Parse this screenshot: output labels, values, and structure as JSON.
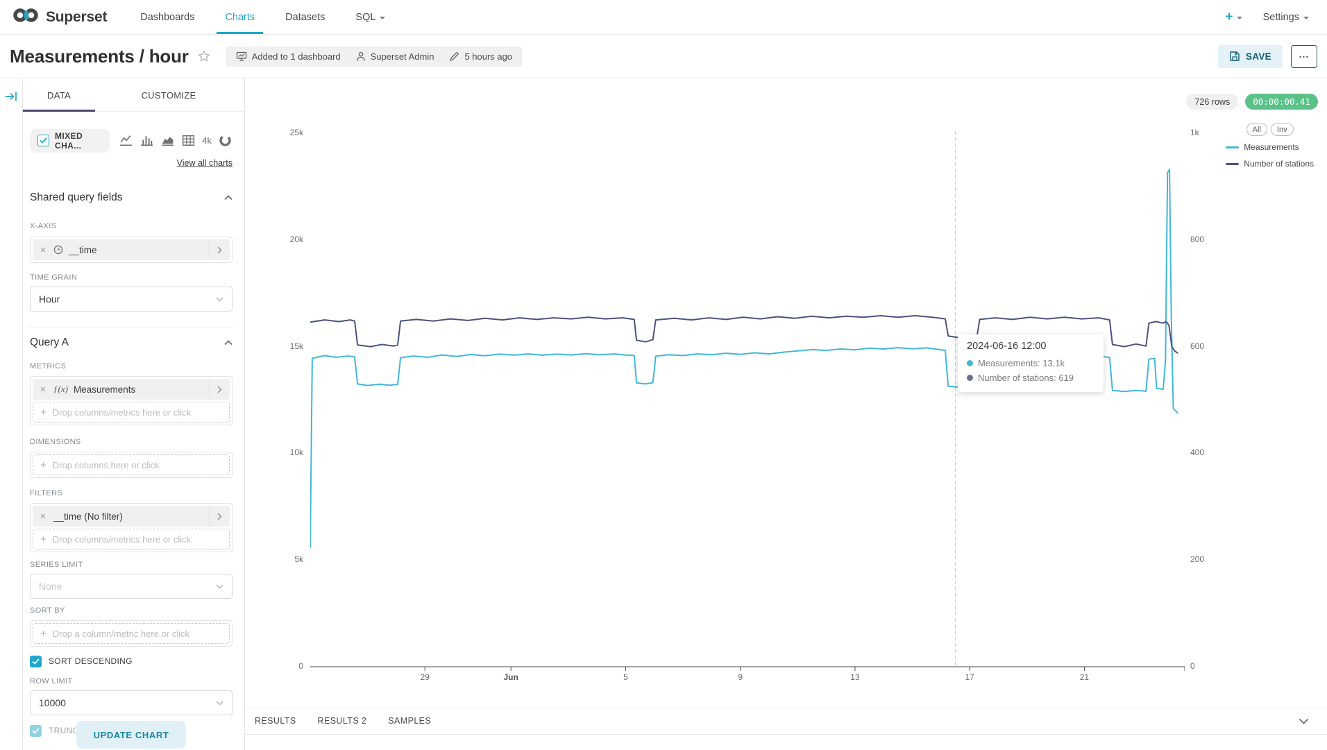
{
  "navbar": {
    "brand": "Superset",
    "items": [
      {
        "label": "Dashboards",
        "active": false
      },
      {
        "label": "Charts",
        "active": true
      },
      {
        "label": "Datasets",
        "active": false
      },
      {
        "label": "SQL",
        "active": false
      }
    ],
    "plus_label": "+",
    "settings_label": "Settings"
  },
  "header": {
    "title": "Measurements / hour",
    "meta": {
      "dashboards": "Added to 1 dashboard",
      "owner": "Superset Admin",
      "modified": "5 hours ago"
    },
    "save_label": "SAVE",
    "more_label": "..."
  },
  "panel": {
    "tabs": {
      "data": "DATA",
      "customize": "CUSTOMIZE"
    },
    "viz": {
      "selected": "MIXED CHA...",
      "icons": [
        "line-chart-icon",
        "bar-chart-icon",
        "area-chart-icon",
        "table-icon",
        "text:4k",
        "donut-chart-icon"
      ],
      "view_all": "View all charts"
    },
    "shared_section": "Shared query fields",
    "x_axis": {
      "label": "X-AXIS",
      "value": "__time"
    },
    "time_grain": {
      "label": "TIME GRAIN",
      "value": "Hour"
    },
    "query_section": "Query A",
    "metrics": {
      "label": "METRICS",
      "chip_prefix": "ƒ(x)",
      "chip": "Measurements",
      "drop": "Drop columns/metrics here or click"
    },
    "dimensions": {
      "label": "DIMENSIONS",
      "drop": "Drop columns here or click"
    },
    "filters": {
      "label": "FILTERS",
      "chip": "__time (No filter)",
      "drop": "Drop columns/metrics here or click"
    },
    "series_limit": {
      "label": "SERIES LIMIT",
      "placeholder": "None"
    },
    "sort_by": {
      "label": "SORT BY",
      "drop": "Drop a column/metric here or click"
    },
    "sort_descending": {
      "label": "SORT DESCENDING",
      "checked": true
    },
    "row_limit": {
      "label": "ROW LIMIT",
      "value": "10000"
    },
    "truncate_metric": {
      "label": "TRUNCATE METRIC",
      "checked": true
    },
    "update_button": "UPDATE CHART"
  },
  "chart": {
    "rows_badge": "726 rows",
    "timer_badge": "00:00:00.41",
    "tooltip": {
      "title": "2024-06-16 12:00",
      "rows": [
        {
          "label": "Measurements",
          "value": "13.1k",
          "color": "#48b6d3"
        },
        {
          "label": "Number of stations",
          "value": "619",
          "color": "#6a7198"
        }
      ]
    }
  },
  "results_tabs": [
    "RESULTS",
    "RESULTS 2",
    "SAMPLES"
  ],
  "colors": {
    "primary": "#20a7c9",
    "success": "#5ac189",
    "ink_bar": "#434a6b",
    "measurements_line": "#41b7d9",
    "stations_line": "#4a527f"
  },
  "chart_data": {
    "type": "line",
    "title": "Measurements / hour",
    "grid": false,
    "legend": {
      "position": "top-right",
      "buttons": [
        "All",
        "Inv"
      ]
    },
    "x_axis": {
      "unit": "days since 2024-05-25 00:00 (hourly data)",
      "domain": [
        0,
        30.5
      ],
      "ticks": [
        {
          "label": "29",
          "day": 4
        },
        {
          "label": "Jun",
          "day": 7,
          "bold": true
        },
        {
          "label": "5",
          "day": 11
        },
        {
          "label": "9",
          "day": 15
        },
        {
          "label": "13",
          "day": 19
        },
        {
          "label": "17",
          "day": 23
        },
        {
          "label": "21",
          "day": 27
        }
      ]
    },
    "y_left": {
      "max": 25000,
      "tick_values": [
        0,
        5000,
        10000,
        15000,
        20000,
        25000
      ],
      "tick_labels": [
        "0",
        "5k",
        "10k",
        "15k",
        "20k",
        "25k"
      ]
    },
    "y_right": {
      "max": 1000,
      "tick_values": [
        0,
        200,
        400,
        600,
        800,
        1000
      ],
      "tick_labels": [
        "0",
        "200",
        "400",
        "600",
        "800",
        "1k"
      ]
    },
    "crosshair_day": 22.5,
    "series": [
      {
        "name": "Measurements",
        "axis": "left",
        "color": "#41b7d9",
        "points": [
          [
            0,
            5600
          ],
          [
            0.07,
            14450
          ],
          [
            0.5,
            14580
          ],
          [
            0.9,
            14500
          ],
          [
            1.3,
            14560
          ],
          [
            1.55,
            14520
          ],
          [
            1.65,
            13250
          ],
          [
            2.0,
            13180
          ],
          [
            2.4,
            13240
          ],
          [
            2.75,
            13190
          ],
          [
            3.05,
            13230
          ],
          [
            3.15,
            14480
          ],
          [
            3.6,
            14560
          ],
          [
            4.1,
            14500
          ],
          [
            4.6,
            14610
          ],
          [
            5.1,
            14540
          ],
          [
            5.6,
            14630
          ],
          [
            6.1,
            14570
          ],
          [
            6.6,
            14650
          ],
          [
            7.1,
            14600
          ],
          [
            7.6,
            14660
          ],
          [
            8.1,
            14600
          ],
          [
            8.6,
            14650
          ],
          [
            9.1,
            14610
          ],
          [
            9.6,
            14670
          ],
          [
            10.1,
            14620
          ],
          [
            10.6,
            14660
          ],
          [
            11.0,
            14610
          ],
          [
            11.3,
            14590
          ],
          [
            11.38,
            13300
          ],
          [
            11.7,
            13250
          ],
          [
            11.95,
            13310
          ],
          [
            12.05,
            14550
          ],
          [
            12.5,
            14620
          ],
          [
            13.0,
            14580
          ],
          [
            13.5,
            14660
          ],
          [
            14.0,
            14620
          ],
          [
            14.5,
            14690
          ],
          [
            15.0,
            14640
          ],
          [
            15.5,
            14710
          ],
          [
            16.0,
            14660
          ],
          [
            16.5,
            14740
          ],
          [
            17.0,
            14800
          ],
          [
            17.5,
            14860
          ],
          [
            18.0,
            14820
          ],
          [
            18.5,
            14890
          ],
          [
            19.0,
            14850
          ],
          [
            19.5,
            14930
          ],
          [
            20.0,
            14890
          ],
          [
            20.5,
            14950
          ],
          [
            21.0,
            14900
          ],
          [
            21.5,
            14940
          ],
          [
            21.9,
            14870
          ],
          [
            22.15,
            14820
          ],
          [
            22.25,
            13150
          ],
          [
            22.6,
            13100
          ],
          [
            23.0,
            13140
          ],
          [
            23.25,
            13110
          ],
          [
            23.35,
            14470
          ],
          [
            23.8,
            14530
          ],
          [
            24.3,
            14480
          ],
          [
            24.8,
            14540
          ],
          [
            25.3,
            14490
          ],
          [
            25.8,
            14550
          ],
          [
            26.3,
            14500
          ],
          [
            26.8,
            14540
          ],
          [
            27.3,
            14500
          ],
          [
            27.7,
            14530
          ],
          [
            27.88,
            14490
          ],
          [
            27.98,
            12950
          ],
          [
            28.4,
            12900
          ],
          [
            28.8,
            12950
          ],
          [
            29.15,
            12910
          ],
          [
            29.25,
            14410
          ],
          [
            29.45,
            14450
          ],
          [
            29.52,
            13050
          ],
          [
            29.75,
            13000
          ],
          [
            29.83,
            14380
          ],
          [
            29.9,
            23150
          ],
          [
            29.97,
            23300
          ],
          [
            30.03,
            16500
          ],
          [
            30.1,
            12100
          ],
          [
            30.25,
            11900
          ]
        ]
      },
      {
        "name": "Number of stations",
        "axis": "right",
        "color": "#4a527f",
        "points": [
          [
            0,
            646
          ],
          [
            0.5,
            650
          ],
          [
            1.0,
            647
          ],
          [
            1.4,
            650
          ],
          [
            1.55,
            648
          ],
          [
            1.65,
            603
          ],
          [
            2.1,
            600
          ],
          [
            2.5,
            604
          ],
          [
            2.9,
            601
          ],
          [
            3.05,
            603
          ],
          [
            3.15,
            648
          ],
          [
            3.7,
            651
          ],
          [
            4.3,
            648
          ],
          [
            4.9,
            652
          ],
          [
            5.5,
            649
          ],
          [
            6.1,
            653
          ],
          [
            6.7,
            650
          ],
          [
            7.3,
            654
          ],
          [
            7.9,
            651
          ],
          [
            8.5,
            654
          ],
          [
            9.1,
            652
          ],
          [
            9.7,
            655
          ],
          [
            10.3,
            652
          ],
          [
            10.9,
            654
          ],
          [
            11.3,
            651
          ],
          [
            11.38,
            612
          ],
          [
            11.7,
            609
          ],
          [
            11.95,
            613
          ],
          [
            12.05,
            650
          ],
          [
            12.7,
            653
          ],
          [
            13.3,
            650
          ],
          [
            13.9,
            654
          ],
          [
            14.5,
            651
          ],
          [
            15.1,
            655
          ],
          [
            15.7,
            652
          ],
          [
            16.3,
            656
          ],
          [
            16.9,
            653
          ],
          [
            17.5,
            657
          ],
          [
            18.1,
            654
          ],
          [
            18.7,
            657
          ],
          [
            19.3,
            655
          ],
          [
            19.9,
            658
          ],
          [
            20.5,
            655
          ],
          [
            21.1,
            658
          ],
          [
            21.7,
            655
          ],
          [
            22.15,
            652
          ],
          [
            22.25,
            620
          ],
          [
            22.6,
            617
          ],
          [
            23.0,
            621
          ],
          [
            23.25,
            618
          ],
          [
            23.35,
            651
          ],
          [
            23.9,
            654
          ],
          [
            24.5,
            651
          ],
          [
            25.1,
            655
          ],
          [
            25.7,
            652
          ],
          [
            26.3,
            655
          ],
          [
            26.9,
            652
          ],
          [
            27.5,
            654
          ],
          [
            27.88,
            650
          ],
          [
            27.98,
            604
          ],
          [
            28.4,
            600
          ],
          [
            28.8,
            605
          ],
          [
            29.15,
            601
          ],
          [
            29.25,
            644
          ],
          [
            29.5,
            647
          ],
          [
            29.75,
            644
          ],
          [
            29.85,
            647
          ],
          [
            29.95,
            640
          ],
          [
            30.05,
            600
          ],
          [
            30.15,
            592
          ],
          [
            30.25,
            588
          ]
        ]
      }
    ]
  }
}
